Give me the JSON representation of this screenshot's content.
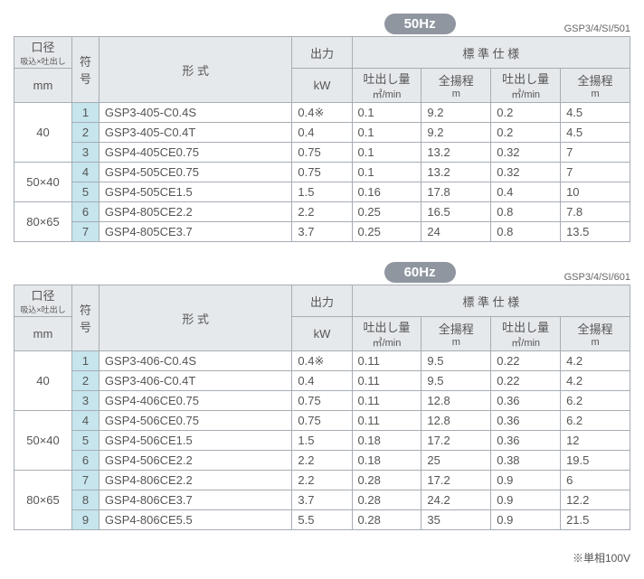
{
  "footnote": "※単相100V",
  "labels": {
    "dia_top": "口径",
    "dia_sub": "吸込×吐出し",
    "dia_unit": "mm",
    "num": "符号",
    "model": "形    式",
    "output": "出力",
    "output_unit": "kW",
    "spec": "標    準    仕    様",
    "disc": "吐出し量",
    "disc_unit": "㎥/min",
    "head": "全揚程",
    "head_unit": "m"
  },
  "tables": [
    {
      "freq": "50Hz",
      "code": "GSP3/4/SI/501",
      "groups": [
        {
          "dia": "40",
          "rows": [
            {
              "n": "1",
              "model": "GSP3-405-C0.4S",
              "kw": "0.4※",
              "d1": "0.1",
              "h1": "9.2",
              "d2": "0.2",
              "h2": "4.5"
            },
            {
              "n": "2",
              "model": "GSP3-405-C0.4T",
              "kw": "0.4",
              "d1": "0.1",
              "h1": "9.2",
              "d2": "0.2",
              "h2": "4.5"
            },
            {
              "n": "3",
              "model": "GSP4-405CE0.75",
              "kw": "0.75",
              "d1": "0.1",
              "h1": "13.2",
              "d2": "0.32",
              "h2": "7"
            }
          ]
        },
        {
          "dia": "50×40",
          "rows": [
            {
              "n": "4",
              "model": "GSP4-505CE0.75",
              "kw": "0.75",
              "d1": "0.1",
              "h1": "13.2",
              "d2": "0.32",
              "h2": "7"
            },
            {
              "n": "5",
              "model": "GSP4-505CE1.5",
              "kw": "1.5",
              "d1": "0.16",
              "h1": "17.8",
              "d2": "0.4",
              "h2": "10"
            }
          ]
        },
        {
          "dia": "80×65",
          "rows": [
            {
              "n": "6",
              "model": "GSP4-805CE2.2",
              "kw": "2.2",
              "d1": "0.25",
              "h1": "16.5",
              "d2": "0.8",
              "h2": "7.8"
            },
            {
              "n": "7",
              "model": "GSP4-805CE3.7",
              "kw": "3.7",
              "d1": "0.25",
              "h1": "24",
              "d2": "0.8",
              "h2": "13.5"
            }
          ]
        }
      ]
    },
    {
      "freq": "60Hz",
      "code": "GSP3/4/SI/601",
      "groups": [
        {
          "dia": "40",
          "rows": [
            {
              "n": "1",
              "model": "GSP3-406-C0.4S",
              "kw": "0.4※",
              "d1": "0.11",
              "h1": "9.5",
              "d2": "0.22",
              "h2": "4.2"
            },
            {
              "n": "2",
              "model": "GSP3-406-C0.4T",
              "kw": "0.4",
              "d1": "0.11",
              "h1": "9.5",
              "d2": "0.22",
              "h2": "4.2"
            },
            {
              "n": "3",
              "model": "GSP4-406CE0.75",
              "kw": "0.75",
              "d1": "0.11",
              "h1": "12.8",
              "d2": "0.36",
              "h2": "6.2"
            }
          ]
        },
        {
          "dia": "50×40",
          "rows": [
            {
              "n": "4",
              "model": "GSP4-506CE0.75",
              "kw": "0.75",
              "d1": "0.11",
              "h1": "12.8",
              "d2": "0.36",
              "h2": "6.2"
            },
            {
              "n": "5",
              "model": "GSP4-506CE1.5",
              "kw": "1.5",
              "d1": "0.18",
              "h1": "17.2",
              "d2": "0.36",
              "h2": "12"
            },
            {
              "n": "6",
              "model": "GSP4-506CE2.2",
              "kw": "2.2",
              "d1": "0.18",
              "h1": "25",
              "d2": "0.38",
              "h2": "19.5"
            }
          ]
        },
        {
          "dia": "80×65",
          "rows": [
            {
              "n": "7",
              "model": "GSP4-806CE2.2",
              "kw": "2.2",
              "d1": "0.28",
              "h1": "17.2",
              "d2": "0.9",
              "h2": "6"
            },
            {
              "n": "8",
              "model": "GSP4-806CE3.7",
              "kw": "3.7",
              "d1": "0.28",
              "h1": "24.2",
              "d2": "0.9",
              "h2": "12.2"
            },
            {
              "n": "9",
              "model": "GSP4-806CE5.5",
              "kw": "5.5",
              "d1": "0.28",
              "h1": "35",
              "d2": "0.9",
              "h2": "21.5"
            }
          ]
        }
      ]
    }
  ]
}
